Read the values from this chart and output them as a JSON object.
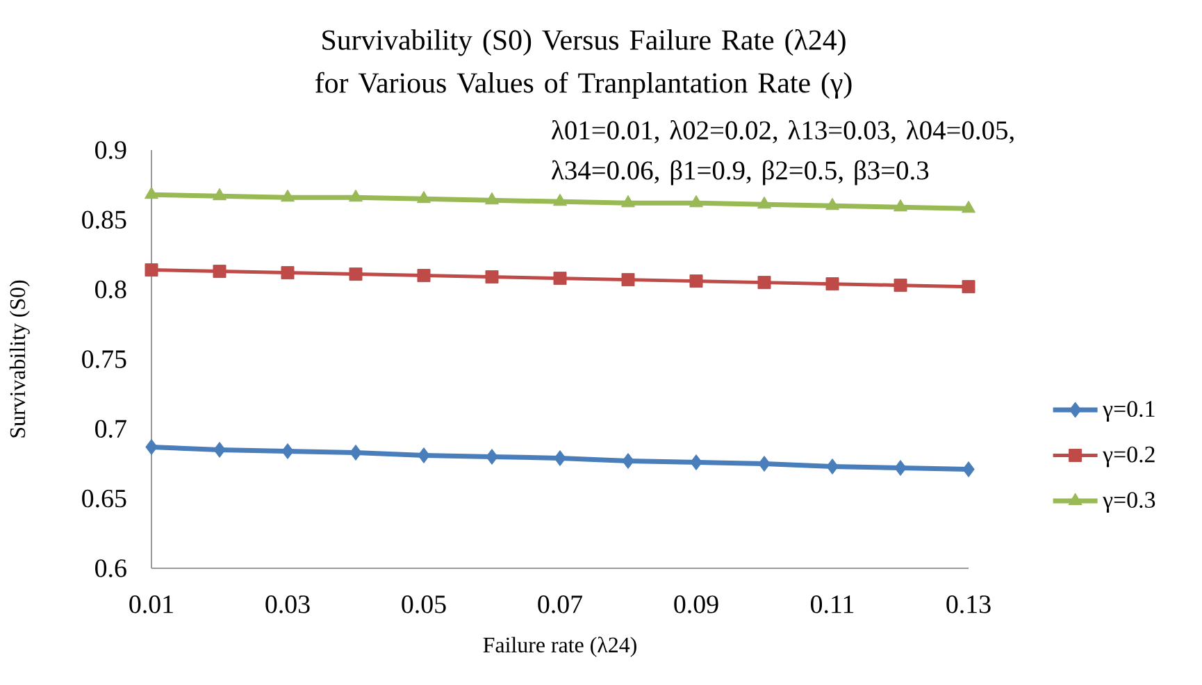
{
  "chart_data": {
    "type": "line",
    "title": "Survivability (S0) Versus Failure Rate (λ24) for Various Values of Tranplantation Rate (γ)",
    "xlabel": "Failure rate (λ24)",
    "ylabel": "Survivability (S0)",
    "annotations": [
      "λ01=0.01, λ02=0.02, λ13=0.03, λ04=0.05, λ34=0.06, β1=0.9, β2=0.5, β3=0.3"
    ],
    "x": [
      0.01,
      0.02,
      0.03,
      0.04,
      0.05,
      0.06,
      0.07,
      0.08,
      0.09,
      0.1,
      0.11,
      0.12,
      0.13
    ],
    "xlim": [
      0.01,
      0.13
    ],
    "xticks": [
      0.01,
      0.03,
      0.05,
      0.07,
      0.09,
      0.11,
      0.13
    ],
    "ylim": [
      0.6,
      0.9
    ],
    "yticks": [
      0.6,
      0.65,
      0.7,
      0.75,
      0.8,
      0.85,
      0.9
    ],
    "grid": false,
    "legend": "right",
    "series": [
      {
        "name": "γ=0.1",
        "color": "#4a7ebb",
        "marker": "diamond",
        "values": [
          0.687,
          0.685,
          0.684,
          0.683,
          0.681,
          0.68,
          0.679,
          0.677,
          0.676,
          0.675,
          0.673,
          0.672,
          0.671
        ]
      },
      {
        "name": "γ=0.2",
        "color": "#be4b48",
        "marker": "square",
        "values": [
          0.814,
          0.813,
          0.812,
          0.811,
          0.81,
          0.809,
          0.808,
          0.807,
          0.806,
          0.805,
          0.804,
          0.803,
          0.802
        ]
      },
      {
        "name": "γ=0.3",
        "color": "#98b954",
        "marker": "triangle",
        "values": [
          0.868,
          0.867,
          0.866,
          0.866,
          0.865,
          0.864,
          0.863,
          0.862,
          0.862,
          0.861,
          0.86,
          0.859,
          0.858
        ]
      }
    ]
  }
}
